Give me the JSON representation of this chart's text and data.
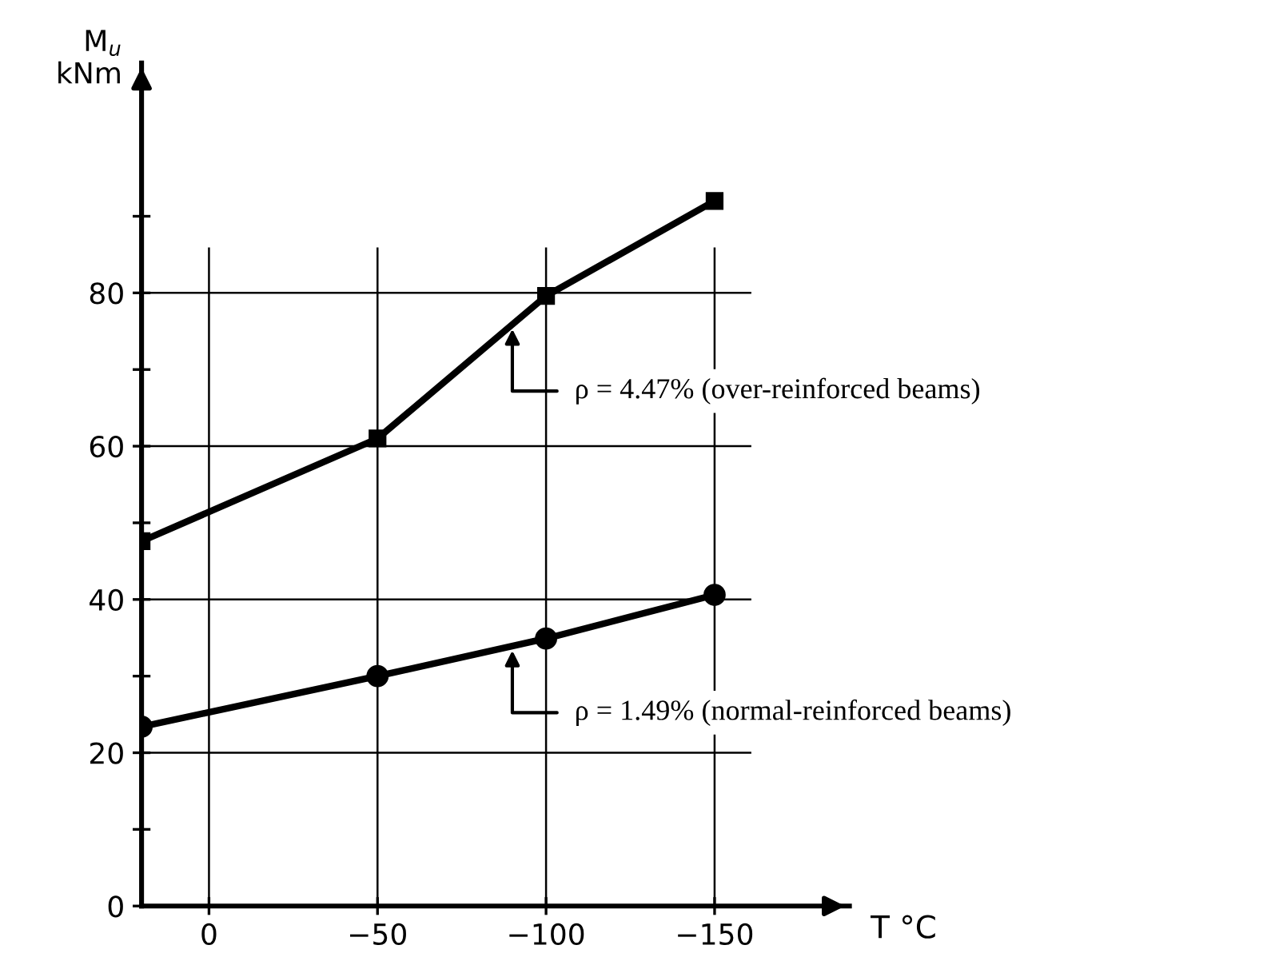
{
  "chart_data": {
    "type": "line",
    "xlabel": "T °C",
    "ylabel": "M$_{u}$\nkNm",
    "x": [
      20,
      -50,
      -100,
      -150
    ],
    "series": [
      {
        "name": "ρ = 4.47% (over-reinforced beams)",
        "color": "#000000",
        "marker": "square",
        "values": [
          47.6,
          61,
          79.6,
          92
        ]
      },
      {
        "name": "ρ = 1.49% (normal-reinforced beams)",
        "color": "#000000",
        "marker": "circle",
        "values": [
          23.4,
          30,
          34.9,
          40.6
        ]
      }
    ],
    "xlim": [
      20,
      -190
    ],
    "ylim": [
      0,
      110
    ],
    "xticks": [
      0,
      -50,
      -100,
      -150
    ],
    "yticks": [
      0,
      {
        "value": 10,
        "label": null
      },
      20,
      {
        "value": 30,
        "label": null
      },
      40,
      {
        "value": 50,
        "label": null
      },
      60,
      {
        "value": 70,
        "label": null
      },
      80,
      {
        "value": 90,
        "label": null
      }
    ],
    "grid": true,
    "line_style": "solid",
    "legend": false
  }
}
